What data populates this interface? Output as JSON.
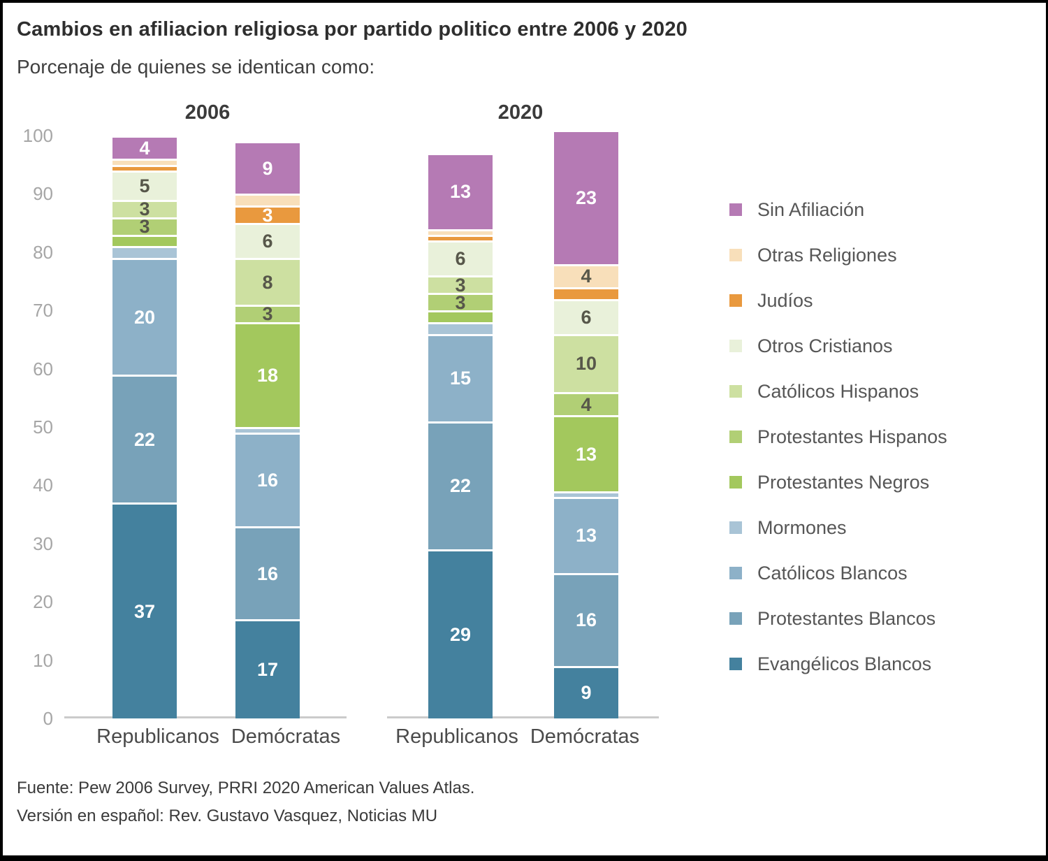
{
  "header": {
    "title": "Cambios en afiliacion religiosa por partido politico entre 2006 y 2020",
    "subtitle": "Porcenaje de quienes se identican como:"
  },
  "footer": {
    "source_line1": "Fuente: Pew 2006 Survey, PRRI 2020 American Values Atlas.",
    "source_line2": "Versión en español: Rev. Gustavo Vasquez, Noticias MU"
  },
  "chart_data": {
    "type": "bar",
    "stacked": true,
    "units": "percent",
    "title": "Cambios en afiliacion religiosa por partido politico entre 2006 y 2020",
    "subtitle": "Porcenaje de quienes se identican como:",
    "xlabel": "",
    "ylabel": "",
    "ylim": [
      0,
      100
    ],
    "yticks": [
      0,
      10,
      20,
      30,
      40,
      50,
      60,
      70,
      80,
      90,
      100
    ],
    "grid": false,
    "legend_position": "right",
    "label_min": 3,
    "groups": [
      {
        "label": "2006",
        "bars": [
          "Republicanos",
          "Demócratas"
        ]
      },
      {
        "label": "2020",
        "bars": [
          "Republicanos",
          "Demócratas"
        ]
      }
    ],
    "bar_labels": [
      "Republicanos",
      "Demócratas",
      "Republicanos",
      "Demócratas"
    ],
    "bar_ids": [
      "republicanos-2006",
      "democratas-2006",
      "republicanos-2020",
      "democratas-2020"
    ],
    "series_order_note": "bottom to top; values are [Republicanos 2006, Demócratas 2006, Republicanos 2020, Demócratas 2020]; values under 3 are unlabeled slivers estimated from pixel heights",
    "series": [
      {
        "key": "evangelicos-blancos",
        "name": "Evangélicos Blancos",
        "color": "#44819e",
        "label_color": "light",
        "values": [
          37,
          17,
          29,
          9
        ]
      },
      {
        "key": "protestantes-blancos",
        "name": "Protestantes Blancos",
        "color": "#78a2b9",
        "label_color": "light",
        "values": [
          22,
          16,
          22,
          16
        ]
      },
      {
        "key": "catolicos-blancos",
        "name": "Católicos Blancos",
        "color": "#8db1c8",
        "label_color": "light",
        "values": [
          20,
          16,
          15,
          13
        ]
      },
      {
        "key": "mormones",
        "name": "Mormones",
        "color": "#a9c4d6",
        "label_color": "light",
        "values": [
          2,
          1,
          2,
          1
        ]
      },
      {
        "key": "protestantes-negros",
        "name": "Protestantes Negros",
        "color": "#a3c85d",
        "label_color": "light",
        "values": [
          2,
          18,
          2,
          13
        ]
      },
      {
        "key": "protestantes-hispanos",
        "name": "Protestantes Hispanos",
        "color": "#b1cf75",
        "label_color": "dark",
        "values": [
          3,
          3,
          3,
          4
        ]
      },
      {
        "key": "catolicos-hispanos",
        "name": "Católicos Hispanos",
        "color": "#cde0a1",
        "label_color": "dark",
        "values": [
          3,
          8,
          3,
          10
        ]
      },
      {
        "key": "otros-cristianos",
        "name": "Otros Cristianos",
        "color": "#e9f1da",
        "label_color": "dark",
        "values": [
          5,
          6,
          6,
          6
        ]
      },
      {
        "key": "judios",
        "name": "Judíos",
        "color": "#e9993e",
        "label_color": "light",
        "values": [
          1,
          3,
          1,
          2
        ]
      },
      {
        "key": "otras-religiones",
        "name": "Otras Religiones",
        "color": "#f8dfba",
        "label_color": "dark",
        "values": [
          1,
          2,
          1,
          4
        ]
      },
      {
        "key": "sin-afiliacion",
        "name": "Sin Afiliación",
        "color": "#b57ab4",
        "label_color": "light",
        "values": [
          4,
          9,
          13,
          23
        ]
      }
    ]
  }
}
